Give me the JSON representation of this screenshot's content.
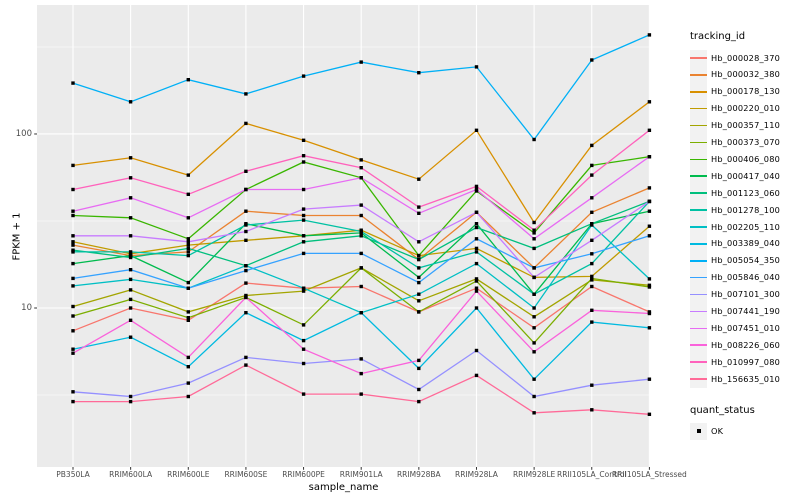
{
  "chart_data": {
    "type": "line",
    "title": "",
    "xlabel": "sample_name",
    "ylabel": "FPKM + 1",
    "x_categories": [
      "PB350LA",
      "RRIM600LA",
      "RRIM600LE",
      "RRIM600SE",
      "RRIM600PE",
      "RRIM901LA",
      "RRIM928BA",
      "RRIM928LA",
      "RRIM928LE",
      "RRII105LA_Control",
      "RRII105LA_Stressed"
    ],
    "y_scale": "log10",
    "y_ticks": [
      10,
      100
    ],
    "y_tick_labels": [
      "10",
      "100"
    ],
    "y_minor_ticks": [
      3.162,
      31.623,
      316.23
    ],
    "ylim": [
      1.22,
      551
    ],
    "grid": true,
    "legend_position": "right",
    "panel_bg": "#EBEBEB",
    "grid_color": "#FFFFFF",
    "tick_color": "#333333",
    "axis_text_color": "#4d4d4d",
    "point": {
      "shape": "square",
      "color": "#000000",
      "size": 3.4
    },
    "legend": {
      "title": "tracking_id"
    },
    "legend2": {
      "title": "quant_status",
      "items": [
        {
          "label": "OK",
          "shape": "square",
          "color": "#000000"
        }
      ]
    },
    "series": [
      {
        "name": "Hb_000028_370",
        "color": "#F8766D",
        "values": [
          7.4,
          10,
          8.5,
          13.9,
          13,
          13.3,
          9.5,
          13,
          7.7,
          13.3,
          9.5
        ]
      },
      {
        "name": "Hb_000032_380",
        "color": "#EA8331",
        "values": [
          23,
          20,
          21,
          36,
          34,
          34,
          19,
          35.5,
          17,
          35.5,
          49
        ]
      },
      {
        "name": "Hb_000178_130",
        "color": "#D89000",
        "values": [
          66,
          73,
          58,
          115,
          92,
          71,
          55,
          105,
          31,
          86,
          153
        ]
      },
      {
        "name": "Hb_000220_010",
        "color": "#C09B00",
        "values": [
          24,
          20.5,
          23,
          24.5,
          26,
          28,
          20,
          22,
          15,
          15.2,
          29.5
        ]
      },
      {
        "name": "Hb_000357_110",
        "color": "#A3A500",
        "values": [
          10.2,
          12.7,
          9.5,
          11.8,
          12.5,
          17,
          11,
          14.7,
          8.9,
          14.5,
          13.5
        ]
      },
      {
        "name": "Hb_000373_070",
        "color": "#7CAE00",
        "values": [
          9,
          11.2,
          8.8,
          11.5,
          8,
          17,
          9.5,
          14.3,
          6.3,
          14.8,
          13.2
        ]
      },
      {
        "name": "Hb_000406_080",
        "color": "#39B600",
        "values": [
          34,
          33,
          25,
          48,
          69,
          56,
          20,
          47,
          27,
          66,
          74
        ]
      },
      {
        "name": "Hb_000417_040",
        "color": "#00BB4E",
        "values": [
          18,
          20,
          14,
          30.5,
          26,
          27,
          15,
          30.5,
          12,
          30.5,
          36
        ]
      },
      {
        "name": "Hb_001123_060",
        "color": "#00BF7D",
        "values": [
          21.5,
          19.5,
          22,
          17.5,
          24,
          26,
          19,
          29,
          22,
          30.5,
          41
        ]
      },
      {
        "name": "Hb_001278_100",
        "color": "#00C1A3",
        "values": [
          21,
          21,
          20,
          30,
          32,
          27.5,
          17,
          21,
          12,
          18,
          41
        ]
      },
      {
        "name": "Hb_002205_110",
        "color": "#00BFC4",
        "values": [
          13.4,
          14.6,
          13,
          17.5,
          13,
          9.4,
          12,
          18,
          10,
          30,
          14.7
        ]
      },
      {
        "name": "Hb_003389_040",
        "color": "#00BAE0",
        "values": [
          5.8,
          6.8,
          4.6,
          9.4,
          6.5,
          9.4,
          4.5,
          10,
          3.9,
          8.3,
          7.7
        ]
      },
      {
        "name": "Hb_005054_350",
        "color": "#00B0F6",
        "values": [
          196,
          153,
          205,
          170,
          215,
          259,
          225,
          243,
          93,
          266,
          371
        ]
      },
      {
        "name": "Hb_005846_040",
        "color": "#35A2FF",
        "values": [
          14.8,
          16.6,
          13,
          16.4,
          20.6,
          20.6,
          14,
          25,
          17,
          20.5,
          26
        ]
      },
      {
        "name": "Hb_007101_300",
        "color": "#9590FF",
        "values": [
          3.3,
          3.1,
          3.7,
          5.2,
          4.8,
          5.1,
          3.4,
          5.7,
          3.1,
          3.6,
          3.9
        ]
      },
      {
        "name": "Hb_007441_190",
        "color": "#C77CFF",
        "values": [
          26,
          26,
          24,
          27.5,
          37,
          39,
          24,
          35.5,
          15,
          24.5,
          41
        ]
      },
      {
        "name": "Hb_007451_010",
        "color": "#E76BF3",
        "values": [
          36,
          43,
          33,
          48,
          48,
          56,
          35,
          48,
          25,
          43,
          74
        ]
      },
      {
        "name": "Hb_008226_060",
        "color": "#FA62DB",
        "values": [
          5.5,
          8.5,
          5.2,
          11.5,
          5.8,
          4.2,
          5,
          12.5,
          5.6,
          9.7,
          9.3
        ]
      },
      {
        "name": "Hb_010997_080",
        "color": "#FF62BC",
        "values": [
          48,
          56,
          45,
          61,
          75,
          64,
          38,
          50,
          28,
          58,
          105
        ]
      },
      {
        "name": "Hb_156635_010",
        "color": "#FF6A98",
        "values": [
          2.9,
          2.9,
          3.1,
          4.7,
          3.2,
          3.2,
          2.9,
          4.1,
          2.5,
          2.6,
          2.45
        ]
      }
    ]
  }
}
